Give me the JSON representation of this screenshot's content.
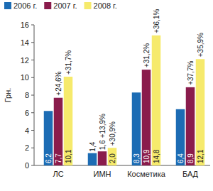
{
  "chart_data": {
    "type": "bar",
    "y_label": "Грн.",
    "categories": [
      "ЛС",
      "ИМН",
      "Косметика",
      "БАД"
    ],
    "series": [
      {
        "name": "2006 г.",
        "color": "#1c6cb4",
        "values": [
          6.2,
          1.4,
          8.3,
          6.4
        ],
        "value_labels": [
          "6,2",
          "1,4",
          "8,3",
          "6,4"
        ]
      },
      {
        "name": "2007 г.",
        "color": "#8a1c4c",
        "values": [
          7.7,
          1.6,
          10.9,
          8.9
        ],
        "value_labels": [
          "7,7",
          "1,6",
          "10,9",
          "8,9"
        ],
        "annotations": [
          "+24,6%",
          "+13,9%",
          "+31,2%",
          "+37,7%"
        ]
      },
      {
        "name": "2008 г.",
        "color": "#f6ea6c",
        "values": [
          10.1,
          2.0,
          14.8,
          12.1
        ],
        "value_labels": [
          "10,1",
          "2,0",
          "14,8",
          "12,1"
        ],
        "annotations": [
          "+31,7%",
          "+30,9%",
          "+36,1%",
          "+35,9%"
        ]
      }
    ],
    "ylim": [
      0,
      16
    ],
    "yticks": [
      0,
      2,
      4,
      6,
      8,
      10,
      12,
      14,
      16
    ],
    "grid": false,
    "legend": "top-left",
    "data_labels": true
  }
}
